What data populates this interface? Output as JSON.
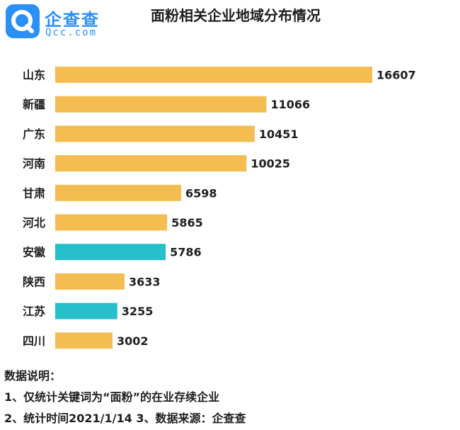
{
  "logo": {
    "name": "企查查",
    "domain": "Qcc.com",
    "icon": "qcc-magnifier-icon",
    "color": "#2a8ff7"
  },
  "chart_data": {
    "type": "bar",
    "orientation": "horizontal",
    "title": "面粉相关企业地域分布情况",
    "categories": [
      "山东",
      "新疆",
      "广东",
      "河南",
      "甘肃",
      "河北",
      "安徽",
      "陕西",
      "江苏",
      "四川"
    ],
    "values": [
      16607,
      11066,
      10451,
      10025,
      6598,
      5865,
      5786,
      3633,
      3255,
      3002
    ],
    "bar_colors": [
      "#f3bd52",
      "#f3bd52",
      "#f3bd52",
      "#f3bd52",
      "#f3bd52",
      "#f3bd52",
      "#26bfcb",
      "#f3bd52",
      "#26bfcb",
      "#f3bd52"
    ],
    "data_labels": true,
    "grid": false,
    "axes_visible": false
  },
  "notes": {
    "heading": "数据说明：",
    "line1": "1、仅统计关键词为“面粉”的在业存续企业",
    "line2": "2、统计时间2021/1/14   3、数据来源：企查查"
  }
}
